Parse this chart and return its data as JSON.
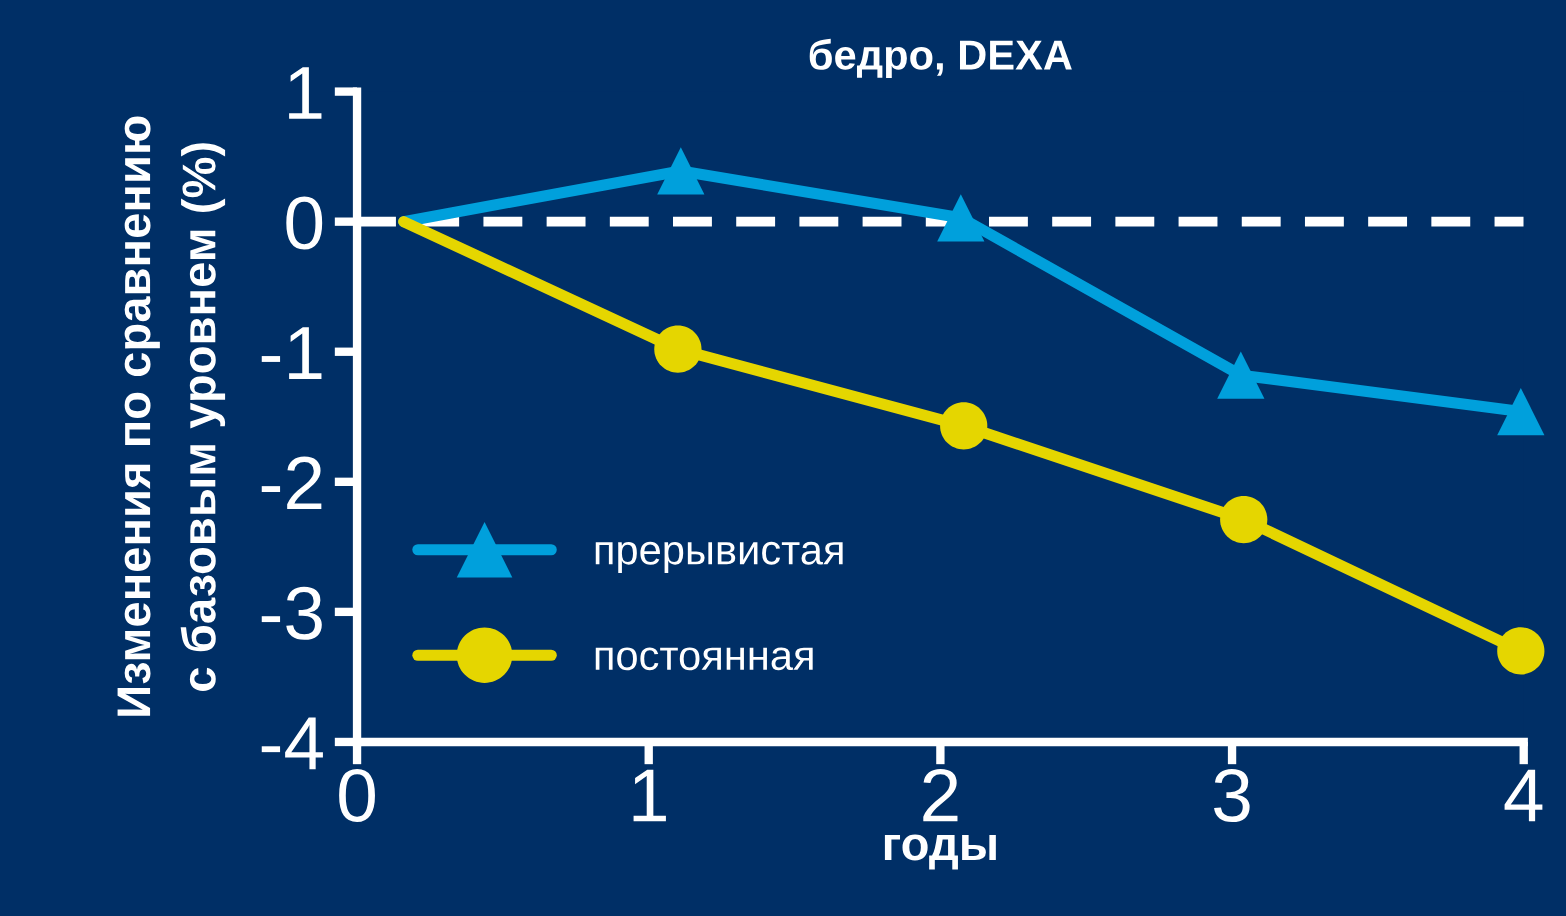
{
  "chart_data": {
    "type": "line",
    "title": "бедро, DEXA",
    "xlabel": "годы",
    "ylabel": "Изменения по сравнению\nс базовым уровнем (%)",
    "series": [
      {
        "name": "прерывистая",
        "color": "#00a0dc",
        "marker": "triangle",
        "x": [
          0.16,
          1.11,
          2.07,
          3.03,
          3.99
        ],
        "values": [
          0,
          0.39,
          0.03,
          -1.18,
          -1.46
        ]
      },
      {
        "name": "постоянная",
        "color": "#e5d600",
        "marker": "circle",
        "x": [
          0.16,
          1.1,
          2.08,
          3.04,
          3.99
        ],
        "values": [
          0,
          -0.98,
          -1.57,
          -2.29,
          -3.3
        ]
      }
    ],
    "xlim": [
      0,
      4
    ],
    "xticks": [
      0,
      1,
      2,
      3,
      4
    ],
    "ylim": [
      -4,
      1
    ],
    "yticks": [
      {
        "value": -4,
        "label": "-4"
      },
      {
        "value": -3,
        "label": "-3"
      },
      {
        "value": -2,
        "label": "-2"
      },
      {
        "value": -1,
        "label": "-1"
      },
      0,
      1
    ],
    "ref_lines": [
      {
        "axis": "y",
        "value": 0,
        "color": "#ffffff",
        "line_style": "dashed"
      }
    ],
    "grid": false,
    "legend": "bottom left",
    "line_style": "solid"
  }
}
